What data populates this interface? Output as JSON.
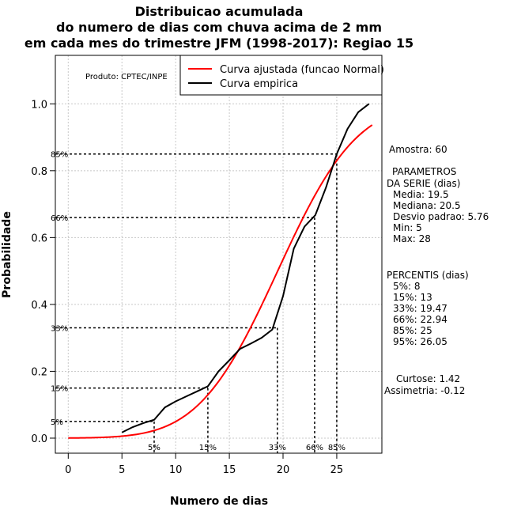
{
  "chart_data": {
    "type": "line",
    "title": [
      "Distribuicao acumulada",
      "do numero de dias com chuva acima de 2 mm",
      "em cada mes do trimestre JFM (1998-2017): Regiao 15"
    ],
    "xlabel": "Numero de dias",
    "ylabel": "Probabilidade",
    "xlim": [
      -1.2,
      29.2
    ],
    "ylim": [
      -0.045,
      1.145
    ],
    "xticks": [
      0,
      5,
      10,
      15,
      20,
      25
    ],
    "yticks": [
      0.0,
      0.2,
      0.4,
      0.6,
      0.8,
      1.0
    ],
    "xtick_labels": [
      "0",
      "5",
      "10",
      "15",
      "20",
      "25"
    ],
    "ytick_labels": [
      "0.0",
      "0.2",
      "0.4",
      "0.6",
      "0.8",
      "1.0"
    ],
    "grid": true,
    "legend_position": "top-right",
    "credit": "Produto: CPTEC/INPE",
    "series": [
      {
        "name": "Curva ajustada (funcao Normal)",
        "color": "#ff0000",
        "kind": "normal_cdf",
        "mean": 19.5,
        "sd": 5.76,
        "x_range": [
          0,
          28.3
        ]
      },
      {
        "name": "Curva empirica",
        "color": "#000000",
        "x": [
          5,
          6,
          7,
          8,
          9,
          10,
          11,
          12,
          13,
          14,
          15,
          16,
          17,
          18,
          19,
          20,
          21,
          22,
          23,
          24,
          25,
          26,
          27,
          28
        ],
        "y": [
          0.017,
          0.033,
          0.045,
          0.055,
          0.092,
          0.11,
          0.125,
          0.14,
          0.155,
          0.2,
          0.233,
          0.267,
          0.283,
          0.3,
          0.325,
          0.425,
          0.567,
          0.633,
          0.667,
          0.75,
          0.85,
          0.925,
          0.975,
          1.0
        ]
      }
    ],
    "percentile_markers": [
      {
        "label": "5%",
        "level": 0.05,
        "x": 8,
        "y_label": "5%"
      },
      {
        "label": "15%",
        "level": 0.15,
        "x": 13,
        "y_label": "15%"
      },
      {
        "label": "33%",
        "level": 0.33,
        "x": 19.47,
        "y_label": "33%"
      },
      {
        "label": "66%",
        "level": 0.66,
        "x": 22.94,
        "y_label": "66%"
      },
      {
        "label": "85%",
        "level": 0.85,
        "x": 25,
        "y_label": "85%"
      }
    ],
    "side_panel": [
      "Amostra: 60",
      "PARAMETROS",
      "DA SERIE (dias)",
      "Media: 19.5",
      "Mediana: 20.5",
      "Desvio padrao: 5.76",
      "Min: 5",
      "Max: 28",
      "PERCENTIS (dias)",
      "5%: 8",
      "15%: 13",
      "33%: 19.47",
      "66%: 22.94",
      "85%: 25",
      "95%: 26.05",
      "Curtose: 1.42",
      "Assimetria: -0.12"
    ]
  }
}
